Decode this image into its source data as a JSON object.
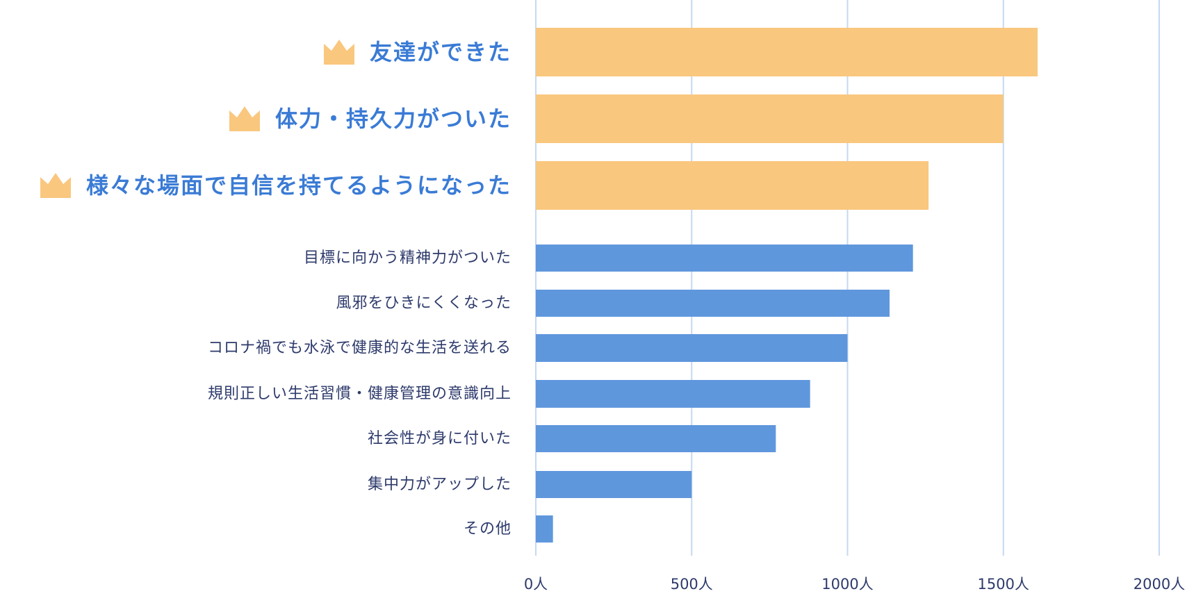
{
  "chart_data": {
    "type": "bar",
    "orientation": "horizontal",
    "categories": [
      "友達ができた",
      "体力・持久力がついた",
      "様々な場面で自信を持てるようになった",
      "目標に向かう精神力がついた",
      "風邪をひきにくくなった",
      "コロナ禍でも水泳で健康的な生活を送れる",
      "規則正しい生活習慣・健康管理の意識向上",
      "社会性が身に付いた",
      "集中力がアップした",
      "その他"
    ],
    "values": [
      1610,
      1500,
      1260,
      1210,
      1135,
      1000,
      880,
      770,
      500,
      55
    ],
    "highlighted": [
      true,
      true,
      true,
      false,
      false,
      false,
      false,
      false,
      false,
      false
    ],
    "highlight_icon": "crown-icon",
    "xlim": [
      0,
      2000
    ],
    "xticks": [
      0,
      500,
      1000,
      1500,
      2000
    ],
    "xtick_labels": [
      "0人",
      "500人",
      "1000人",
      "1500人",
      "2000人"
    ],
    "grid": true,
    "colors": {
      "highlight": "#f9c77e",
      "normal": "#5f97dd",
      "grid": "#c5d9f1",
      "highlight_text": "#3a7bd5",
      "text": "#2d3a6b"
    }
  }
}
